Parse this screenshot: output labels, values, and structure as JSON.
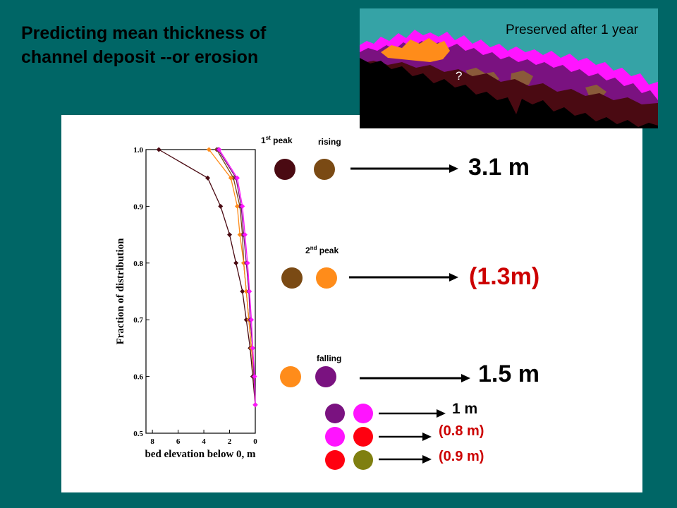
{
  "title": {
    "line1": "Predicting mean thickness of",
    "line2": "channel deposit --or erosion"
  },
  "inset": {
    "caption": "Preserved after 1 year",
    "question_mark": "?"
  },
  "labels": {
    "first_peak_num": "1",
    "first_peak_sup": "st",
    "first_peak_word": " peak",
    "rising": "rising",
    "second_peak_num": "2",
    "second_peak_sup": "nd",
    "second_peak_word": " peak",
    "falling": "falling"
  },
  "results": {
    "r1": "3.1 m",
    "r2": "(1.3m)",
    "r3": "1.5 m",
    "r4": "1 m",
    "r5": "(0.8 m)",
    "r6": "(0.9 m)"
  },
  "colors": {
    "background": "#006666",
    "first_peak": "#4a0a12",
    "rising": "#7a4a14",
    "second_peak_brown": "#7a4a14",
    "second_peak_orange": "#ff8c1a",
    "falling_orange": "#ff8c1a",
    "falling_purple": "#7a1280",
    "purple": "#7a1280",
    "magenta": "#ff14ff",
    "red": "#ff0010",
    "olive": "#7f7f10",
    "value_red": "#cc0000"
  },
  "chart_data": {
    "type": "line",
    "xlabel": "bed elevation below 0, m",
    "ylabel": "Fraction of distribution",
    "xlim": [
      8.5,
      0
    ],
    "ylim": [
      0.5,
      1.0
    ],
    "xticks": [
      "8",
      "6",
      "4",
      "2",
      "0"
    ],
    "yticks": [
      "0.5",
      "0.6",
      "0.7",
      "0.8",
      "0.9",
      "1.0"
    ],
    "y": [
      1.0,
      0.95,
      0.9,
      0.85,
      0.8,
      0.75,
      0.7,
      0.65,
      0.6,
      0.55
    ],
    "series": [
      {
        "color": "#4a0a12",
        "x": [
          7.5,
          3.7,
          2.7,
          2.0,
          1.5,
          1.0,
          0.7,
          0.4,
          0.2,
          0.0
        ]
      },
      {
        "color": "#7a4a14",
        "x": [
          3.0,
          1.7,
          1.2,
          1.0,
          0.9,
          0.7,
          0.5,
          0.3,
          0.1,
          0.0
        ]
      },
      {
        "color": "#ff8c1a",
        "x": [
          3.6,
          1.9,
          1.4,
          1.2,
          0.9,
          0.7,
          0.5,
          0.3,
          0.1,
          0.0
        ]
      },
      {
        "color": "#7a1280",
        "x": [
          2.9,
          1.5,
          1.1,
          0.9,
          0.7,
          0.5,
          0.4,
          0.2,
          0.1,
          0.0
        ]
      },
      {
        "color": "#ff14ff",
        "x": [
          2.8,
          1.4,
          1.0,
          0.8,
          0.6,
          0.45,
          0.3,
          0.2,
          0.05,
          0.0
        ]
      }
    ]
  }
}
